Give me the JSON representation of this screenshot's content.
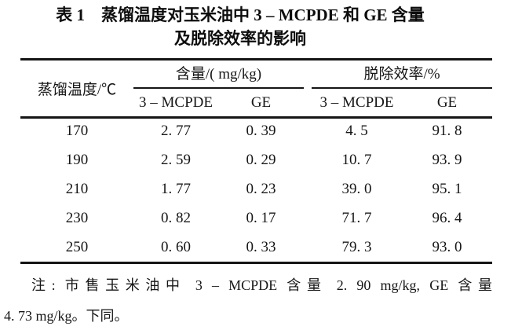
{
  "title": {
    "line1": "表 1　蒸馏温度对玉米油中 3 – MCPDE 和 GE 含量",
    "line2": "及脱除效率的影响"
  },
  "table": {
    "row_header": "蒸馏温度/℃",
    "groups": [
      {
        "label": "含量/( mg/kg)",
        "columns": [
          "3 – MCPDE",
          "GE"
        ]
      },
      {
        "label": "脱除效率/%",
        "columns": [
          "3 – MCPDE",
          "GE"
        ]
      }
    ],
    "rows": [
      {
        "temp": "170",
        "content_mcpde": "2. 77",
        "content_ge": "0. 39",
        "removal_mcpde": "4. 5",
        "removal_ge": "91. 8"
      },
      {
        "temp": "190",
        "content_mcpde": "2. 59",
        "content_ge": "0. 29",
        "removal_mcpde": "10. 7",
        "removal_ge": "93. 9"
      },
      {
        "temp": "210",
        "content_mcpde": "1. 77",
        "content_ge": "0. 23",
        "removal_mcpde": "39. 0",
        "removal_ge": "95. 1"
      },
      {
        "temp": "230",
        "content_mcpde": "0. 82",
        "content_ge": "0. 17",
        "removal_mcpde": "71. 7",
        "removal_ge": "96. 4"
      },
      {
        "temp": "250",
        "content_mcpde": "0. 60",
        "content_ge": "0. 33",
        "removal_mcpde": "79. 3",
        "removal_ge": "93. 0"
      }
    ]
  },
  "note": {
    "line1": "注: 市售玉米油中 3 – MCPDE 含量 2. 90 mg/kg, GE 含量",
    "line2": "4. 73 mg/kg。下同。"
  }
}
